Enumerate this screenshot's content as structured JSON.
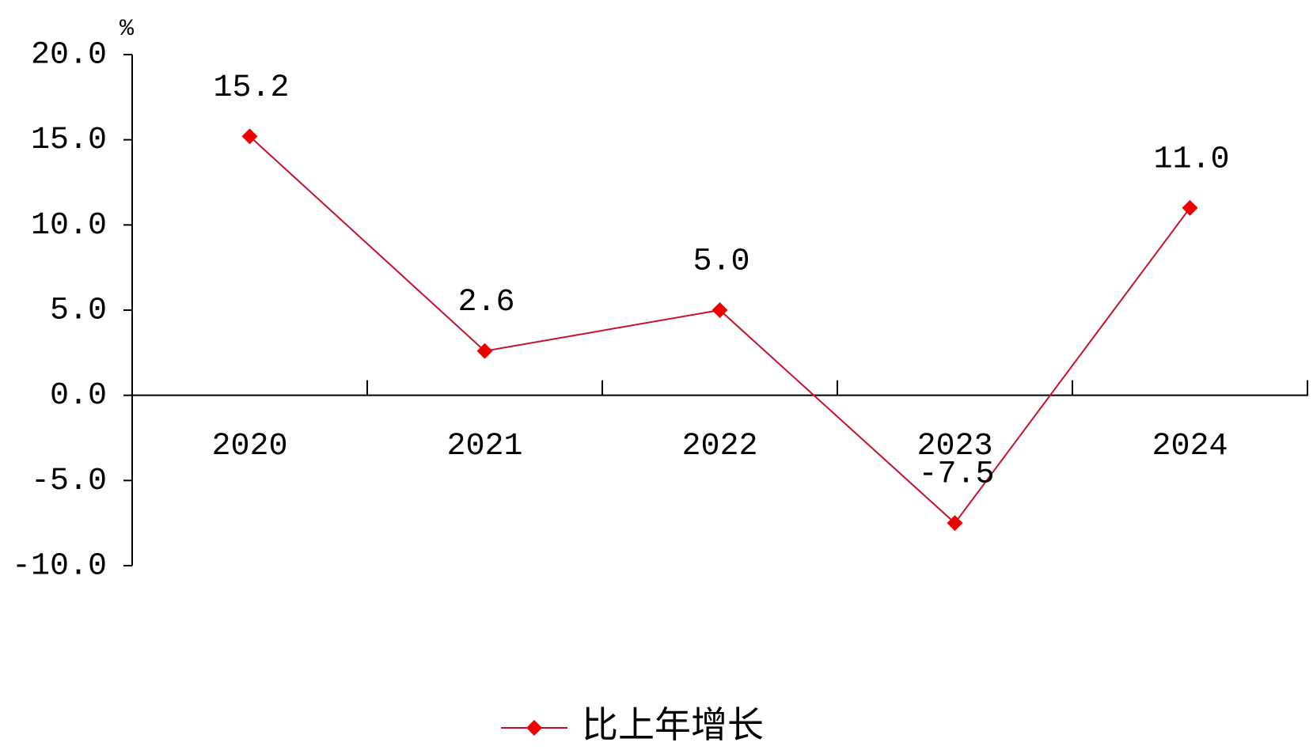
{
  "chart_data": {
    "type": "line",
    "y_label": "%",
    "categories": [
      "2020",
      "2021",
      "2022",
      "2023",
      "2024"
    ],
    "series": [
      {
        "name": "比上年增长",
        "color": "#ee0000",
        "line_color": "#c8102e",
        "values": [
          15.2,
          2.6,
          5.0,
          -7.5,
          11.0
        ],
        "value_labels": [
          "15.2",
          "2.6",
          "5.0",
          "-7.5",
          "11.0"
        ]
      }
    ],
    "ylim": [
      -10,
      20
    ],
    "yticks": [
      {
        "value": -10,
        "label": "-10.0"
      },
      {
        "value": -5,
        "label": "-5.0"
      },
      {
        "value": 0,
        "label": "0.0"
      },
      {
        "value": 5,
        "label": "5.0"
      },
      {
        "value": 10,
        "label": "10.0"
      },
      {
        "value": 15,
        "label": "15.0"
      },
      {
        "value": 20,
        "label": "20.0"
      }
    ],
    "legend": "bottom"
  }
}
